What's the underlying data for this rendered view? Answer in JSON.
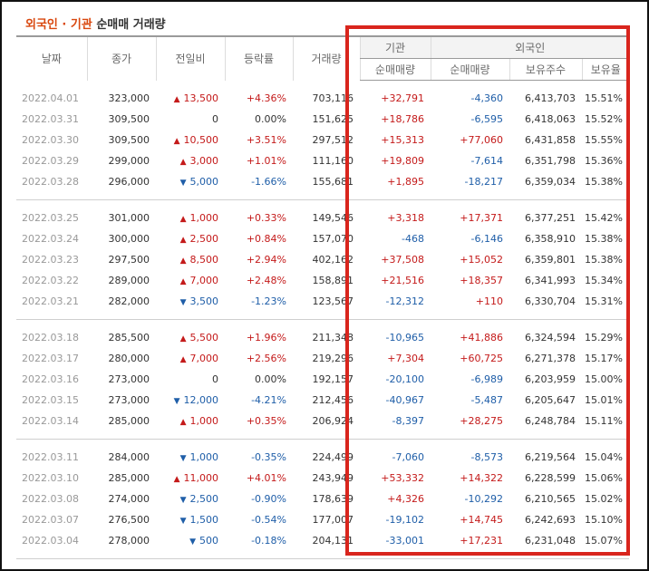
{
  "heading": {
    "part1": "외국인 · 기관",
    "part2": "순매매 거래량"
  },
  "columns": {
    "date": "날짜",
    "close": "종가",
    "change": "전일비",
    "rate": "등락률",
    "volume": "거래량",
    "institution_group": "기관",
    "foreign_group": "외국인",
    "inst_net": "순매매량",
    "foreign_net": "순매매량",
    "holding": "보유주수",
    "holding_ratio": "보유율"
  },
  "colors": {
    "up": "#c41a1a",
    "down": "#1f5ea8",
    "highlight_border": "#d9251d"
  },
  "groups": [
    {
      "rows": [
        {
          "date": "2022.04.01",
          "close": "323,000",
          "dir": "up",
          "change": "13,500",
          "rate": "+4.36%",
          "volume": "703,116",
          "inst": "+32,791",
          "foreign": "-4,360",
          "holding": "6,413,703",
          "ratio": "15.51%"
        },
        {
          "date": "2022.03.31",
          "close": "309,500",
          "dir": "none",
          "change": "0",
          "rate": "0.00%",
          "volume": "151,625",
          "inst": "+18,786",
          "foreign": "-6,595",
          "holding": "6,418,063",
          "ratio": "15.52%"
        },
        {
          "date": "2022.03.30",
          "close": "309,500",
          "dir": "up",
          "change": "10,500",
          "rate": "+3.51%",
          "volume": "297,512",
          "inst": "+15,313",
          "foreign": "+77,060",
          "holding": "6,431,858",
          "ratio": "15.55%"
        },
        {
          "date": "2022.03.29",
          "close": "299,000",
          "dir": "up",
          "change": "3,000",
          "rate": "+1.01%",
          "volume": "111,160",
          "inst": "+19,809",
          "foreign": "-7,614",
          "holding": "6,351,798",
          "ratio": "15.36%"
        },
        {
          "date": "2022.03.28",
          "close": "296,000",
          "dir": "down",
          "change": "5,000",
          "rate": "-1.66%",
          "volume": "155,681",
          "inst": "+1,895",
          "foreign": "-18,217",
          "holding": "6,359,034",
          "ratio": "15.38%"
        }
      ]
    },
    {
      "rows": [
        {
          "date": "2022.03.25",
          "close": "301,000",
          "dir": "up",
          "change": "1,000",
          "rate": "+0.33%",
          "volume": "149,546",
          "inst": "+3,318",
          "foreign": "+17,371",
          "holding": "6,377,251",
          "ratio": "15.42%"
        },
        {
          "date": "2022.03.24",
          "close": "300,000",
          "dir": "up",
          "change": "2,500",
          "rate": "+0.84%",
          "volume": "157,070",
          "inst": "-468",
          "foreign": "-6,146",
          "holding": "6,358,910",
          "ratio": "15.38%"
        },
        {
          "date": "2022.03.23",
          "close": "297,500",
          "dir": "up",
          "change": "8,500",
          "rate": "+2.94%",
          "volume": "402,162",
          "inst": "+37,508",
          "foreign": "+15,052",
          "holding": "6,359,801",
          "ratio": "15.38%"
        },
        {
          "date": "2022.03.22",
          "close": "289,000",
          "dir": "up",
          "change": "7,000",
          "rate": "+2.48%",
          "volume": "158,891",
          "inst": "+21,516",
          "foreign": "+18,357",
          "holding": "6,341,993",
          "ratio": "15.34%"
        },
        {
          "date": "2022.03.21",
          "close": "282,000",
          "dir": "down",
          "change": "3,500",
          "rate": "-1.23%",
          "volume": "123,567",
          "inst": "-12,312",
          "foreign": "+110",
          "holding": "6,330,704",
          "ratio": "15.31%"
        }
      ]
    },
    {
      "rows": [
        {
          "date": "2022.03.18",
          "close": "285,500",
          "dir": "up",
          "change": "5,500",
          "rate": "+1.96%",
          "volume": "211,348",
          "inst": "-10,965",
          "foreign": "+41,886",
          "holding": "6,324,594",
          "ratio": "15.29%"
        },
        {
          "date": "2022.03.17",
          "close": "280,000",
          "dir": "up",
          "change": "7,000",
          "rate": "+2.56%",
          "volume": "219,296",
          "inst": "+7,304",
          "foreign": "+60,725",
          "holding": "6,271,378",
          "ratio": "15.17%"
        },
        {
          "date": "2022.03.16",
          "close": "273,000",
          "dir": "none",
          "change": "0",
          "rate": "0.00%",
          "volume": "192,157",
          "inst": "-20,100",
          "foreign": "-6,989",
          "holding": "6,203,959",
          "ratio": "15.00%"
        },
        {
          "date": "2022.03.15",
          "close": "273,000",
          "dir": "down",
          "change": "12,000",
          "rate": "-4.21%",
          "volume": "212,456",
          "inst": "-40,967",
          "foreign": "-5,487",
          "holding": "6,205,647",
          "ratio": "15.01%"
        },
        {
          "date": "2022.03.14",
          "close": "285,000",
          "dir": "up",
          "change": "1,000",
          "rate": "+0.35%",
          "volume": "206,924",
          "inst": "-8,397",
          "foreign": "+28,275",
          "holding": "6,248,784",
          "ratio": "15.11%"
        }
      ]
    },
    {
      "rows": [
        {
          "date": "2022.03.11",
          "close": "284,000",
          "dir": "down",
          "change": "1,000",
          "rate": "-0.35%",
          "volume": "224,499",
          "inst": "-7,060",
          "foreign": "-8,573",
          "holding": "6,219,564",
          "ratio": "15.04%"
        },
        {
          "date": "2022.03.10",
          "close": "285,000",
          "dir": "up",
          "change": "11,000",
          "rate": "+4.01%",
          "volume": "243,949",
          "inst": "+53,332",
          "foreign": "+14,322",
          "holding": "6,228,599",
          "ratio": "15.06%"
        },
        {
          "date": "2022.03.08",
          "close": "274,000",
          "dir": "down",
          "change": "2,500",
          "rate": "-0.90%",
          "volume": "178,639",
          "inst": "+4,326",
          "foreign": "-10,292",
          "holding": "6,210,565",
          "ratio": "15.02%"
        },
        {
          "date": "2022.03.07",
          "close": "276,500",
          "dir": "down",
          "change": "1,500",
          "rate": "-0.54%",
          "volume": "177,007",
          "inst": "-19,102",
          "foreign": "+14,745",
          "holding": "6,242,693",
          "ratio": "15.10%"
        },
        {
          "date": "2022.03.04",
          "close": "278,000",
          "dir": "down",
          "change": "500",
          "rate": "-0.18%",
          "volume": "204,131",
          "inst": "-33,001",
          "foreign": "+17,231",
          "holding": "6,231,048",
          "ratio": "15.07%"
        }
      ]
    }
  ]
}
